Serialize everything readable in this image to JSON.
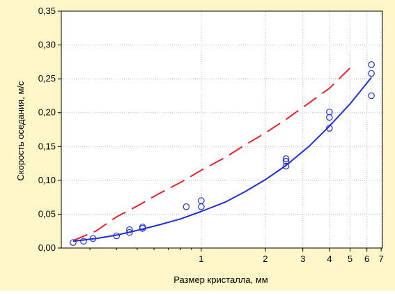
{
  "chart_data": {
    "type": "scatter",
    "x_scale": "log",
    "background": "#fdf6c9",
    "plot_background": "#ffffff",
    "grid": true,
    "xlabel": "Размер кристалла, мм",
    "ylabel": "Скорость оседания, м/с",
    "xlim": [
      0.22,
      7.1
    ],
    "ylim": [
      0,
      0.35
    ],
    "x_ticks": [
      {
        "value": 1,
        "label": "1"
      },
      {
        "value": 2,
        "label": "2"
      },
      {
        "value": 3,
        "label": "3"
      },
      {
        "value": 4,
        "label": "4"
      },
      {
        "value": 5,
        "label": "5"
      },
      {
        "value": 6,
        "label": "6"
      },
      {
        "value": 7,
        "label": "7"
      }
    ],
    "y_ticks": [
      {
        "value": 0.0,
        "label": "0,00"
      },
      {
        "value": 0.05,
        "label": "0,05"
      },
      {
        "value": 0.1,
        "label": "0,10"
      },
      {
        "value": 0.15,
        "label": "0,15"
      },
      {
        "value": 0.2,
        "label": "0,20"
      },
      {
        "value": 0.25,
        "label": "0,25"
      },
      {
        "value": 0.3,
        "label": "0,30"
      },
      {
        "value": 0.35,
        "label": "0,35"
      }
    ],
    "series": [
      {
        "kind": "points",
        "color": "#1f2fd6",
        "marker": "open-circle",
        "points": [
          {
            "x": 0.25,
            "y": 0.008
          },
          {
            "x": 0.28,
            "y": 0.01
          },
          {
            "x": 0.31,
            "y": 0.014
          },
          {
            "x": 0.4,
            "y": 0.018
          },
          {
            "x": 0.46,
            "y": 0.023
          },
          {
            "x": 0.46,
            "y": 0.027
          },
          {
            "x": 0.53,
            "y": 0.029
          },
          {
            "x": 0.53,
            "y": 0.031
          },
          {
            "x": 0.85,
            "y": 0.061
          },
          {
            "x": 1.0,
            "y": 0.061
          },
          {
            "x": 1.0,
            "y": 0.07
          },
          {
            "x": 2.5,
            "y": 0.121
          },
          {
            "x": 2.5,
            "y": 0.128
          },
          {
            "x": 2.5,
            "y": 0.132
          },
          {
            "x": 4.0,
            "y": 0.177
          },
          {
            "x": 4.0,
            "y": 0.193
          },
          {
            "x": 4.0,
            "y": 0.201
          },
          {
            "x": 6.3,
            "y": 0.225
          },
          {
            "x": 6.3,
            "y": 0.258
          },
          {
            "x": 6.3,
            "y": 0.271
          }
        ]
      },
      {
        "kind": "curve",
        "style": "solid",
        "color": "#1f2fd6",
        "points": [
          {
            "x": 0.25,
            "y": 0.01
          },
          {
            "x": 0.32,
            "y": 0.014
          },
          {
            "x": 0.4,
            "y": 0.019
          },
          {
            "x": 0.5,
            "y": 0.026
          },
          {
            "x": 0.63,
            "y": 0.034
          },
          {
            "x": 0.8,
            "y": 0.043
          },
          {
            "x": 1.0,
            "y": 0.054
          },
          {
            "x": 1.3,
            "y": 0.068
          },
          {
            "x": 1.6,
            "y": 0.083
          },
          {
            "x": 2.0,
            "y": 0.101
          },
          {
            "x": 2.5,
            "y": 0.122
          },
          {
            "x": 3.2,
            "y": 0.15
          },
          {
            "x": 4.0,
            "y": 0.18
          },
          {
            "x": 5.0,
            "y": 0.213
          },
          {
            "x": 6.3,
            "y": 0.252
          }
        ]
      },
      {
        "kind": "curve",
        "style": "dashed",
        "color": "#e3232a",
        "points": [
          {
            "x": 0.25,
            "y": 0.011
          },
          {
            "x": 0.32,
            "y": 0.025
          },
          {
            "x": 0.4,
            "y": 0.046
          },
          {
            "x": 0.5,
            "y": 0.062
          },
          {
            "x": 0.63,
            "y": 0.08
          },
          {
            "x": 0.8,
            "y": 0.097
          },
          {
            "x": 1.0,
            "y": 0.115
          },
          {
            "x": 1.3,
            "y": 0.134
          },
          {
            "x": 1.6,
            "y": 0.152
          },
          {
            "x": 2.0,
            "y": 0.17
          },
          {
            "x": 2.5,
            "y": 0.19
          },
          {
            "x": 3.2,
            "y": 0.214
          },
          {
            "x": 4.0,
            "y": 0.236
          },
          {
            "x": 5.0,
            "y": 0.266
          }
        ]
      }
    ]
  }
}
